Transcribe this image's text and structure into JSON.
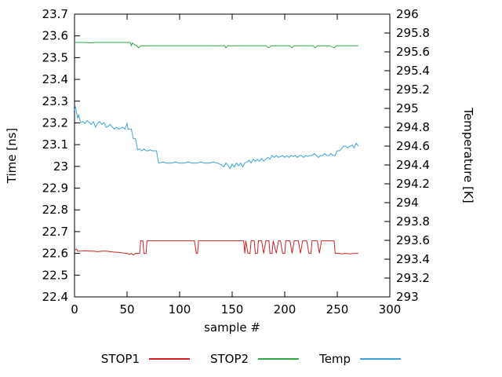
{
  "chart": {
    "xlabel": "sample #",
    "ylabel_left": "Time [ns]",
    "ylabel_right": "Temperature [K]",
    "legend": [
      {
        "label": "STOP1",
        "color": "#cf2222"
      },
      {
        "label": "STOP2",
        "color": "#2fa646"
      },
      {
        "label": "Temp",
        "color": "#3ba3d8"
      }
    ]
  },
  "chart_data": {
    "type": "line",
    "title": "",
    "xlabel": "sample #",
    "ylabel_left": "Time [ns]",
    "ylabel_right": "Temperature [K]",
    "grid": false,
    "legend_position": "bottom",
    "x_range": [
      0,
      300
    ],
    "x_ticks": [
      {
        "v": 0,
        "label": "0"
      },
      {
        "v": 50,
        "label": "50"
      },
      {
        "v": 100,
        "label": "100"
      },
      {
        "v": 150,
        "label": "150"
      },
      {
        "v": 200,
        "label": "200"
      },
      {
        "v": 250,
        "label": "250"
      },
      {
        "v": 300,
        "label": "300"
      }
    ],
    "y_left_range": [
      22.4,
      23.7
    ],
    "y_left_ticks": [
      {
        "v": 22.4,
        "label": "22.4"
      },
      {
        "v": 22.5,
        "label": "22.5"
      },
      {
        "v": 22.6,
        "label": "22.6"
      },
      {
        "v": 22.7,
        "label": "22.7"
      },
      {
        "v": 22.8,
        "label": "22.8"
      },
      {
        "v": 22.9,
        "label": "22.9"
      },
      {
        "v": 23,
        "label": "23"
      },
      {
        "v": 23.1,
        "label": "23.1"
      },
      {
        "v": 23.2,
        "label": "23.2"
      },
      {
        "v": 23.3,
        "label": "23.3"
      },
      {
        "v": 23.4,
        "label": "23.4"
      },
      {
        "v": 23.5,
        "label": "23.5"
      },
      {
        "v": 23.6,
        "label": "23.6"
      },
      {
        "v": 23.7,
        "label": "23.7"
      }
    ],
    "y_right_range": [
      293,
      296
    ],
    "y_right_ticks": [
      {
        "v": 293,
        "label": "293"
      },
      {
        "v": 293.2,
        "label": "293.2"
      },
      {
        "v": 293.4,
        "label": "293.4"
      },
      {
        "v": 293.6,
        "label": "293.6"
      },
      {
        "v": 293.8,
        "label": "293.8"
      },
      {
        "v": 294,
        "label": "294"
      },
      {
        "v": 294.2,
        "label": "294.2"
      },
      {
        "v": 294.4,
        "label": "294.4"
      },
      {
        "v": 294.6,
        "label": "294.6"
      },
      {
        "v": 294.8,
        "label": "294.8"
      },
      {
        "v": 295,
        "label": "295"
      },
      {
        "v": 295.2,
        "label": "295.2"
      },
      {
        "v": 295.4,
        "label": "295.4"
      },
      {
        "v": 295.6,
        "label": "295.6"
      },
      {
        "v": 295.8,
        "label": "295.8"
      },
      {
        "v": 296,
        "label": "296"
      }
    ],
    "series": [
      {
        "name": "STOP1",
        "axis": "left",
        "color": "#cf2222",
        "points": [
          [
            0,
            22.615
          ],
          [
            2,
            22.62
          ],
          [
            3,
            22.61
          ],
          [
            6,
            22.61
          ],
          [
            10,
            22.612
          ],
          [
            14,
            22.61
          ],
          [
            18,
            22.61
          ],
          [
            22,
            22.608
          ],
          [
            26,
            22.61
          ],
          [
            30,
            22.61
          ],
          [
            34,
            22.608
          ],
          [
            38,
            22.606
          ],
          [
            42,
            22.605
          ],
          [
            46,
            22.602
          ],
          [
            50,
            22.6
          ],
          [
            52,
            22.595
          ],
          [
            54,
            22.6
          ],
          [
            56,
            22.593
          ],
          [
            58,
            22.6
          ],
          [
            60,
            22.6
          ],
          [
            62,
            22.6
          ],
          [
            63,
            22.658
          ],
          [
            65,
            22.658
          ],
          [
            66,
            22.6
          ],
          [
            68,
            22.6
          ],
          [
            69,
            22.658
          ],
          [
            72,
            22.658
          ],
          [
            76,
            22.658
          ],
          [
            80,
            22.658
          ],
          [
            85,
            22.658
          ],
          [
            90,
            22.658
          ],
          [
            95,
            22.658
          ],
          [
            100,
            22.658
          ],
          [
            105,
            22.658
          ],
          [
            110,
            22.658
          ],
          [
            114,
            22.658
          ],
          [
            116,
            22.6
          ],
          [
            117,
            22.6
          ],
          [
            118,
            22.658
          ],
          [
            122,
            22.658
          ],
          [
            128,
            22.658
          ],
          [
            134,
            22.658
          ],
          [
            140,
            22.658
          ],
          [
            146,
            22.658
          ],
          [
            152,
            22.658
          ],
          [
            158,
            22.658
          ],
          [
            161,
            22.658
          ],
          [
            162,
            22.6
          ],
          [
            163,
            22.658
          ],
          [
            165,
            22.6
          ],
          [
            167,
            22.6
          ],
          [
            168,
            22.658
          ],
          [
            171,
            22.658
          ],
          [
            172,
            22.6
          ],
          [
            174,
            22.6
          ],
          [
            175,
            22.658
          ],
          [
            178,
            22.658
          ],
          [
            180,
            22.6
          ],
          [
            182,
            22.658
          ],
          [
            185,
            22.658
          ],
          [
            186,
            22.6
          ],
          [
            188,
            22.6
          ],
          [
            189,
            22.658
          ],
          [
            192,
            22.6
          ],
          [
            194,
            22.658
          ],
          [
            196,
            22.658
          ],
          [
            198,
            22.6
          ],
          [
            200,
            22.6
          ],
          [
            201,
            22.658
          ],
          [
            205,
            22.658
          ],
          [
            207,
            22.6
          ],
          [
            209,
            22.658
          ],
          [
            213,
            22.658
          ],
          [
            215,
            22.6
          ],
          [
            217,
            22.658
          ],
          [
            221,
            22.658
          ],
          [
            223,
            22.6
          ],
          [
            225,
            22.6
          ],
          [
            226,
            22.658
          ],
          [
            231,
            22.658
          ],
          [
            233,
            22.6
          ],
          [
            235,
            22.658
          ],
          [
            239,
            22.658
          ],
          [
            243,
            22.658
          ],
          [
            247,
            22.658
          ],
          [
            248,
            22.6
          ],
          [
            252,
            22.6
          ],
          [
            255,
            22.598
          ],
          [
            258,
            22.6
          ],
          [
            262,
            22.598
          ],
          [
            266,
            22.6
          ],
          [
            270,
            22.6
          ]
        ]
      },
      {
        "name": "STOP2",
        "axis": "left",
        "color": "#2fa646",
        "points": [
          [
            0,
            23.57
          ],
          [
            5,
            23.57
          ],
          [
            10,
            23.57
          ],
          [
            15,
            23.568
          ],
          [
            20,
            23.57
          ],
          [
            25,
            23.57
          ],
          [
            30,
            23.57
          ],
          [
            35,
            23.57
          ],
          [
            40,
            23.57
          ],
          [
            45,
            23.57
          ],
          [
            50,
            23.57
          ],
          [
            53,
            23.57
          ],
          [
            54,
            23.555
          ],
          [
            55,
            23.568
          ],
          [
            57,
            23.56
          ],
          [
            59,
            23.555
          ],
          [
            61,
            23.545
          ],
          [
            63,
            23.555
          ],
          [
            67,
            23.555
          ],
          [
            72,
            23.555
          ],
          [
            78,
            23.555
          ],
          [
            84,
            23.555
          ],
          [
            90,
            23.555
          ],
          [
            96,
            23.555
          ],
          [
            102,
            23.555
          ],
          [
            108,
            23.555
          ],
          [
            114,
            23.555
          ],
          [
            120,
            23.555
          ],
          [
            126,
            23.555
          ],
          [
            132,
            23.555
          ],
          [
            138,
            23.555
          ],
          [
            143,
            23.555
          ],
          [
            144,
            23.545
          ],
          [
            146,
            23.555
          ],
          [
            152,
            23.555
          ],
          [
            158,
            23.555
          ],
          [
            164,
            23.555
          ],
          [
            170,
            23.555
          ],
          [
            176,
            23.555
          ],
          [
            182,
            23.555
          ],
          [
            185,
            23.545
          ],
          [
            187,
            23.555
          ],
          [
            193,
            23.555
          ],
          [
            199,
            23.555
          ],
          [
            205,
            23.555
          ],
          [
            207,
            23.545
          ],
          [
            209,
            23.555
          ],
          [
            215,
            23.555
          ],
          [
            221,
            23.555
          ],
          [
            227,
            23.555
          ],
          [
            229,
            23.545
          ],
          [
            231,
            23.555
          ],
          [
            237,
            23.555
          ],
          [
            243,
            23.555
          ],
          [
            247,
            23.545
          ],
          [
            249,
            23.555
          ],
          [
            255,
            23.555
          ],
          [
            261,
            23.555
          ],
          [
            266,
            23.555
          ],
          [
            270,
            23.555
          ]
        ]
      },
      {
        "name": "Temp",
        "axis": "right",
        "color": "#3ba3d8",
        "points": [
          [
            0,
            294.98
          ],
          [
            1,
            295.02
          ],
          [
            2,
            294.95
          ],
          [
            3,
            294.9
          ],
          [
            4,
            294.93
          ],
          [
            5,
            294.88
          ],
          [
            6,
            294.85
          ],
          [
            8,
            294.86
          ],
          [
            10,
            294.84
          ],
          [
            12,
            294.87
          ],
          [
            14,
            294.85
          ],
          [
            16,
            294.83
          ],
          [
            18,
            294.86
          ],
          [
            20,
            294.8
          ],
          [
            22,
            294.84
          ],
          [
            24,
            294.86
          ],
          [
            26,
            294.83
          ],
          [
            28,
            294.85
          ],
          [
            30,
            294.8
          ],
          [
            32,
            294.81
          ],
          [
            34,
            294.83
          ],
          [
            36,
            294.8
          ],
          [
            38,
            294.78
          ],
          [
            40,
            294.8
          ],
          [
            42,
            294.78
          ],
          [
            44,
            294.79
          ],
          [
            46,
            294.8
          ],
          [
            48,
            294.78
          ],
          [
            50,
            294.84
          ],
          [
            51,
            294.78
          ],
          [
            54,
            294.78
          ],
          [
            56,
            294.68
          ],
          [
            58,
            294.68
          ],
          [
            60,
            294.56
          ],
          [
            62,
            294.57
          ],
          [
            64,
            294.55
          ],
          [
            66,
            294.57
          ],
          [
            68,
            294.55
          ],
          [
            70,
            294.55
          ],
          [
            72,
            294.56
          ],
          [
            74,
            294.55
          ],
          [
            76,
            294.55
          ],
          [
            78,
            294.55
          ],
          [
            80,
            294.42
          ],
          [
            84,
            294.43
          ],
          [
            88,
            294.42
          ],
          [
            92,
            294.42
          ],
          [
            96,
            294.43
          ],
          [
            100,
            294.42
          ],
          [
            104,
            294.42
          ],
          [
            108,
            294.43
          ],
          [
            112,
            294.42
          ],
          [
            116,
            294.42
          ],
          [
            120,
            294.43
          ],
          [
            124,
            294.42
          ],
          [
            128,
            294.42
          ],
          [
            132,
            294.43
          ],
          [
            136,
            294.42
          ],
          [
            140,
            294.4
          ],
          [
            142,
            294.38
          ],
          [
            144,
            294.42
          ],
          [
            146,
            294.4
          ],
          [
            148,
            294.36
          ],
          [
            150,
            294.41
          ],
          [
            152,
            294.38
          ],
          [
            154,
            294.42
          ],
          [
            156,
            294.39
          ],
          [
            158,
            294.42
          ],
          [
            160,
            294.38
          ],
          [
            162,
            294.42
          ],
          [
            164,
            294.43
          ],
          [
            166,
            294.45
          ],
          [
            168,
            294.42
          ],
          [
            170,
            294.46
          ],
          [
            172,
            294.44
          ],
          [
            174,
            294.46
          ],
          [
            176,
            294.44
          ],
          [
            178,
            294.47
          ],
          [
            180,
            294.44
          ],
          [
            182,
            294.46
          ],
          [
            184,
            294.48
          ],
          [
            186,
            294.46
          ],
          [
            188,
            294.5
          ],
          [
            190,
            294.48
          ],
          [
            192,
            294.5
          ],
          [
            194,
            294.48
          ],
          [
            196,
            294.49
          ],
          [
            198,
            294.5
          ],
          [
            200,
            294.48
          ],
          [
            202,
            294.5
          ],
          [
            204,
            294.48
          ],
          [
            206,
            294.5
          ],
          [
            208,
            294.49
          ],
          [
            210,
            294.5
          ],
          [
            212,
            294.48
          ],
          [
            214,
            294.5
          ],
          [
            216,
            294.5
          ],
          [
            218,
            294.48
          ],
          [
            220,
            294.5
          ],
          [
            222,
            294.49
          ],
          [
            224,
            294.5
          ],
          [
            226,
            294.5
          ],
          [
            228,
            294.52
          ],
          [
            230,
            294.5
          ],
          [
            232,
            294.48
          ],
          [
            234,
            294.5
          ],
          [
            236,
            294.5
          ],
          [
            238,
            294.52
          ],
          [
            240,
            294.5
          ],
          [
            242,
            294.5
          ],
          [
            244,
            294.52
          ],
          [
            246,
            294.5
          ],
          [
            248,
            294.5
          ],
          [
            250,
            294.55
          ],
          [
            252,
            294.55
          ],
          [
            254,
            294.57
          ],
          [
            256,
            294.6
          ],
          [
            258,
            294.6
          ],
          [
            260,
            294.58
          ],
          [
            262,
            294.6
          ],
          [
            264,
            294.61
          ],
          [
            266,
            294.58
          ],
          [
            268,
            294.63
          ],
          [
            270,
            294.6
          ]
        ]
      }
    ]
  }
}
